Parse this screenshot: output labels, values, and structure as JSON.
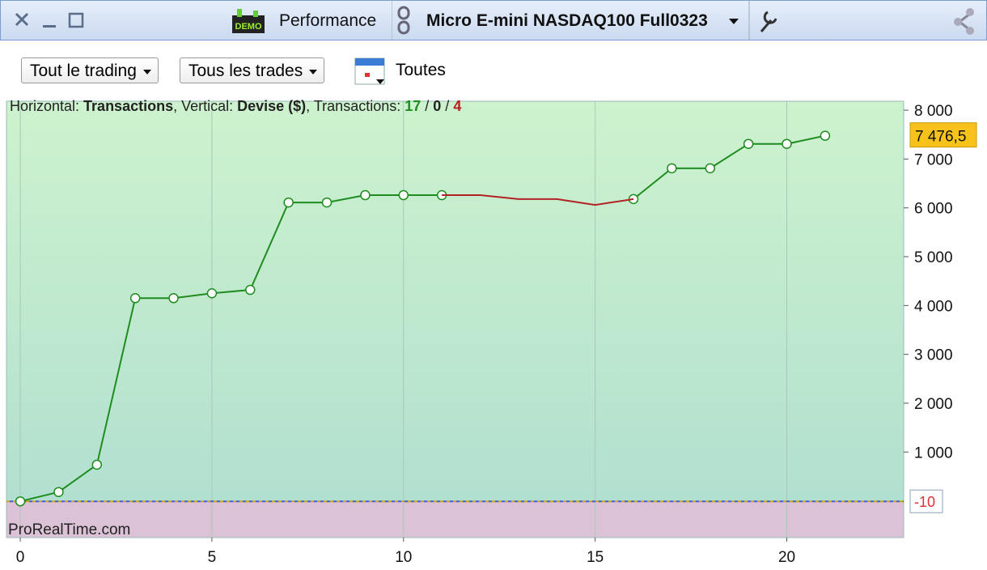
{
  "toolbar": {
    "badge": "DEMO",
    "module": "Performance",
    "instrument": "Micro E-mini NASDAQ100 Full0323"
  },
  "filters": {
    "scope": "Tout le trading",
    "trades": "Tous les trades",
    "period": "Toutes"
  },
  "chart_data": {
    "type": "line",
    "info": {
      "horizontal_label": "Horizontal: ",
      "horizontal": "Transactions",
      "vertical_label": ", Vertical: ",
      "vertical": "Devise ($)",
      "count_label": ", Transactions: ",
      "separator": " / ",
      "wins": 17,
      "neutral": 0,
      "losses": 4
    },
    "watermark": "ProRealTime.com",
    "x": [
      0,
      1,
      2,
      3,
      4,
      5,
      6,
      7,
      8,
      9,
      10,
      11,
      12,
      13,
      14,
      15,
      16,
      17,
      18,
      19,
      20,
      21
    ],
    "series": [
      {
        "color": "#1e8c1e",
        "markers": true,
        "values": [
          -10,
          180,
          740,
          4150,
          4150,
          4250,
          4320,
          6110,
          6110,
          6260,
          6260,
          6260,
          null,
          null,
          null,
          null,
          6180,
          6810,
          6810,
          7310,
          7310,
          7476.5
        ],
        "value_labels": [
          null,
          null,
          null,
          null,
          null,
          null,
          null,
          null,
          null,
          null,
          null,
          null,
          null,
          null,
          null,
          null,
          null,
          null,
          null,
          null,
          null,
          "7 476,5"
        ]
      },
      {
        "color": "#b22222",
        "markers": false,
        "values": [
          null,
          null,
          null,
          null,
          null,
          null,
          null,
          null,
          null,
          null,
          null,
          6260,
          6260,
          6180,
          6180,
          6060,
          6180,
          null,
          null,
          null,
          null,
          null
        ]
      }
    ],
    "baseline": -10,
    "xlim": [
      -0.36,
      23.05
    ],
    "ylim": [
      -753,
      8184
    ],
    "xticks": [
      0,
      5,
      10,
      15,
      20
    ],
    "yticks": [
      {
        "value": 1000,
        "label": "1 000"
      },
      {
        "value": 2000,
        "label": "2 000"
      },
      {
        "value": 3000,
        "label": "3 000"
      },
      {
        "value": 4000,
        "label": "4 000"
      },
      {
        "value": 5000,
        "label": "5 000"
      },
      {
        "value": 6000,
        "label": "6 000"
      },
      {
        "value": 7000,
        "label": "7 000"
      },
      {
        "value": 8000,
        "label": "8 000"
      }
    ],
    "grid": true
  }
}
